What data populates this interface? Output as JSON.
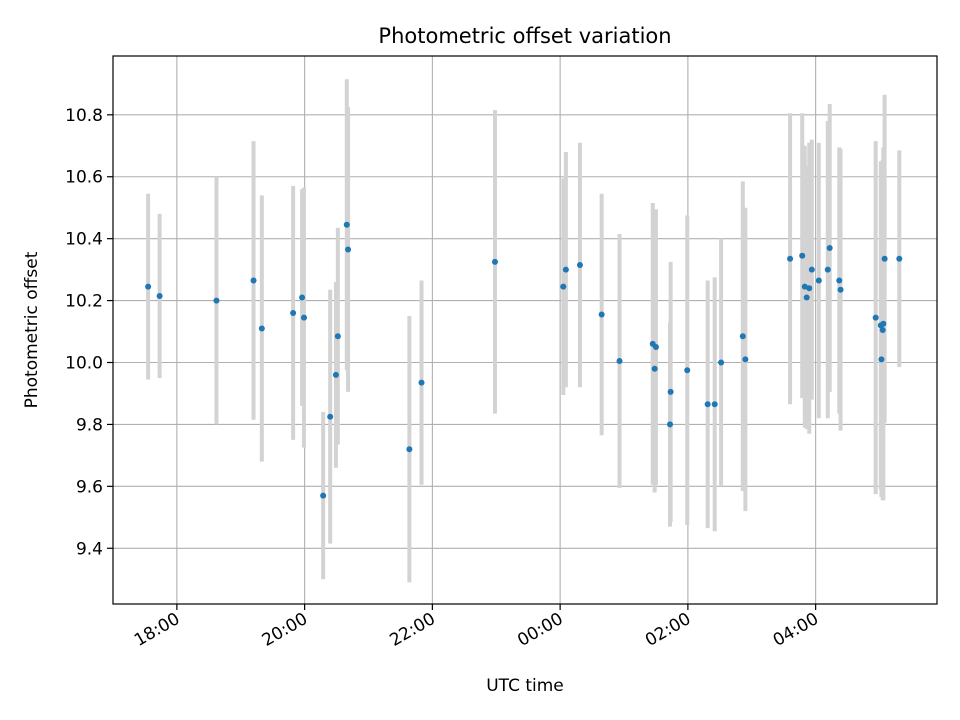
{
  "chart_data": {
    "type": "scatter",
    "title": "Photometric offset variation",
    "xlabel": "UTC time",
    "ylabel": "Photometric offset",
    "x_ticks": [
      "18:00",
      "20:00",
      "22:00",
      "00:00",
      "02:00",
      "04:00"
    ],
    "y_ticks": [
      "9.4",
      "9.6",
      "9.8",
      "10.0",
      "10.2",
      "10.4",
      "10.6",
      "10.8"
    ],
    "xlim_hours": [
      17.0,
      29.9
    ],
    "ylim": [
      9.22,
      10.99
    ],
    "grid": true,
    "legend": "none",
    "point_color": "#1f77b4",
    "errorbar_color": "#d3d3d3",
    "series": [
      {
        "x": [
          17.55,
          17.73,
          18.62,
          19.2,
          19.33,
          19.82,
          19.96,
          19.99,
          20.29,
          20.4,
          20.49,
          20.52,
          20.66,
          20.68,
          21.64,
          21.83,
          22.98,
          24.05,
          24.09,
          24.31,
          24.65,
          24.93,
          25.45,
          25.48,
          25.5,
          25.72,
          25.73,
          25.99,
          26.31,
          26.42,
          26.52,
          26.86,
          26.9,
          27.6,
          27.79,
          27.83,
          27.86,
          27.9,
          27.94,
          28.05,
          28.19,
          28.22,
          28.37,
          28.39,
          28.94,
          29.02,
          29.03,
          29.05,
          29.06,
          29.08,
          29.31
        ],
        "y": [
          10.245,
          10.215,
          10.2,
          10.265,
          10.11,
          10.16,
          10.21,
          10.145,
          9.57,
          9.825,
          9.96,
          10.085,
          10.445,
          10.365,
          9.72,
          9.935,
          10.325,
          10.245,
          10.3,
          10.315,
          10.155,
          10.005,
          10.06,
          9.98,
          10.05,
          9.8,
          9.905,
          9.975,
          9.865,
          9.865,
          10.0,
          10.085,
          10.01,
          10.335,
          10.345,
          10.245,
          10.21,
          10.24,
          10.3,
          10.265,
          10.3,
          10.37,
          10.265,
          10.235,
          10.145,
          10.12,
          10.01,
          10.105,
          10.125,
          10.335,
          10.335
        ],
        "err": [
          0.3,
          0.265,
          0.4,
          0.45,
          0.43,
          0.41,
          0.35,
          0.42,
          0.27,
          0.41,
          0.3,
          0.35,
          0.47,
          0.46,
          0.43,
          0.33,
          0.49,
          0.35,
          0.38,
          0.395,
          0.39,
          0.41,
          0.455,
          0.4,
          0.445,
          0.33,
          0.42,
          0.5,
          0.4,
          0.41,
          0.4,
          0.5,
          0.49,
          0.47,
          0.46,
          0.455,
          0.425,
          0.47,
          0.42,
          0.445,
          0.48,
          0.465,
          0.43,
          0.455,
          0.57,
          0.53,
          0.445,
          0.55,
          0.57,
          0.53,
          0.35
        ]
      }
    ]
  }
}
